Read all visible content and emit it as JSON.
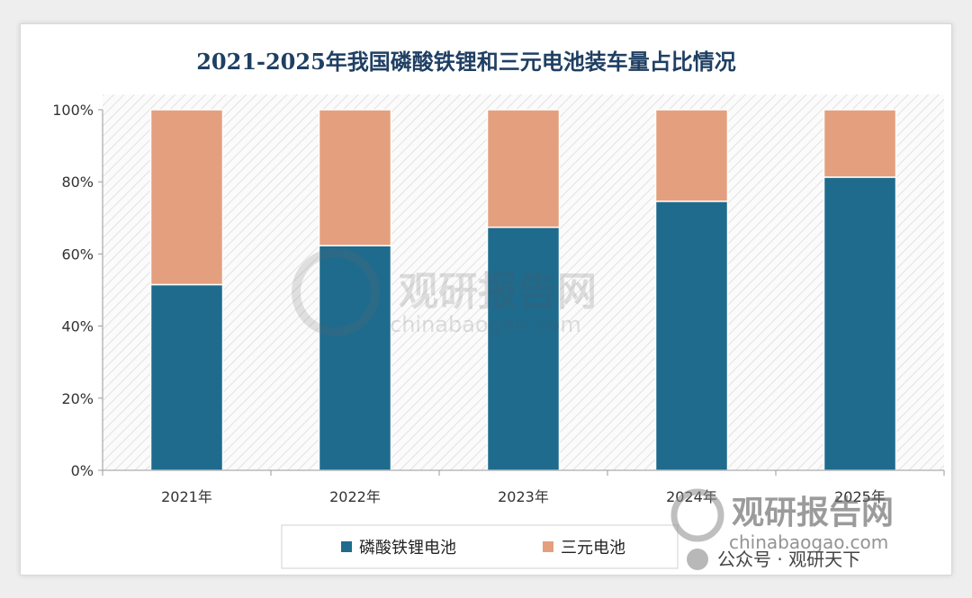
{
  "chart_data": {
    "type": "bar",
    "stacked": true,
    "title": "2021-2025年我国磷酸铁锂和三元电池装车量占比情况",
    "categories": [
      "2021年",
      "2022年",
      "2023年",
      "2024年",
      "2025年"
    ],
    "series": [
      {
        "name": "磷酸铁锂电池",
        "color": "#1f6b8e",
        "values": [
          51.5,
          62.3,
          67.4,
          74.6,
          81.3
        ]
      },
      {
        "name": "三元电池",
        "color": "#e4a07e",
        "values": [
          48.5,
          37.7,
          32.6,
          25.4,
          18.7
        ]
      }
    ],
    "yticks": [
      "0%",
      "20%",
      "40%",
      "60%",
      "80%",
      "100%"
    ],
    "ylim": [
      0,
      100
    ],
    "legend_position": "bottom",
    "title_color": "#1f3f63"
  },
  "watermark": {
    "center_text": "观研报告网",
    "center_url": "chinabaogao.com",
    "corner_text": "观研报告网",
    "corner_url": "chinabaogao.com",
    "account": "公众号 · 观研天下"
  }
}
